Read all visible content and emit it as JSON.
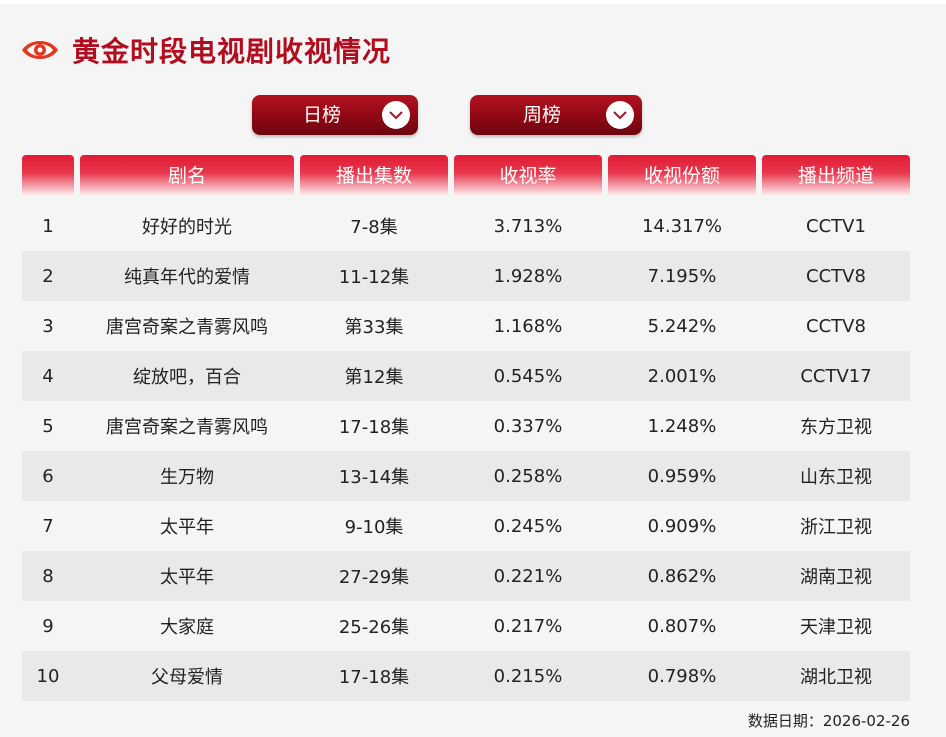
{
  "header": {
    "title": "黄金时段电视剧收视情况",
    "icon": "eye-icon",
    "accent_color": "#b10d1e"
  },
  "tabs": [
    {
      "label": "日榜",
      "icon": "chevron-down-icon"
    },
    {
      "label": "周榜",
      "icon": "chevron-down-icon"
    }
  ],
  "table": {
    "columns": [
      "",
      "剧名",
      "播出集数",
      "收视率",
      "收视份额",
      "播出频道"
    ],
    "rows": [
      [
        "1",
        "好好的时光",
        "7-8集",
        "3.713%",
        "14.317%",
        "CCTV1"
      ],
      [
        "2",
        "纯真年代的爱情",
        "11-12集",
        "1.928%",
        "7.195%",
        "CCTV8"
      ],
      [
        "3",
        "唐宫奇案之青雾风鸣",
        "第33集",
        "1.168%",
        "5.242%",
        "CCTV8"
      ],
      [
        "4",
        "绽放吧，百合",
        "第12集",
        "0.545%",
        "2.001%",
        "CCTV17"
      ],
      [
        "5",
        "唐宫奇案之青雾风鸣",
        "17-18集",
        "0.337%",
        "1.248%",
        "东方卫视"
      ],
      [
        "6",
        "生万物",
        "13-14集",
        "0.258%",
        "0.959%",
        "山东卫视"
      ],
      [
        "7",
        "太平年",
        "9-10集",
        "0.245%",
        "0.909%",
        "浙江卫视"
      ],
      [
        "8",
        "太平年",
        "27-29集",
        "0.221%",
        "0.862%",
        "湖南卫视"
      ],
      [
        "9",
        "大家庭",
        "25-26集",
        "0.217%",
        "0.807%",
        "天津卫视"
      ],
      [
        "10",
        "父母爱情",
        "17-18集",
        "0.215%",
        "0.798%",
        "湖北卫视"
      ]
    ]
  },
  "footer": {
    "date_text": "数据日期：2026-02-26"
  }
}
